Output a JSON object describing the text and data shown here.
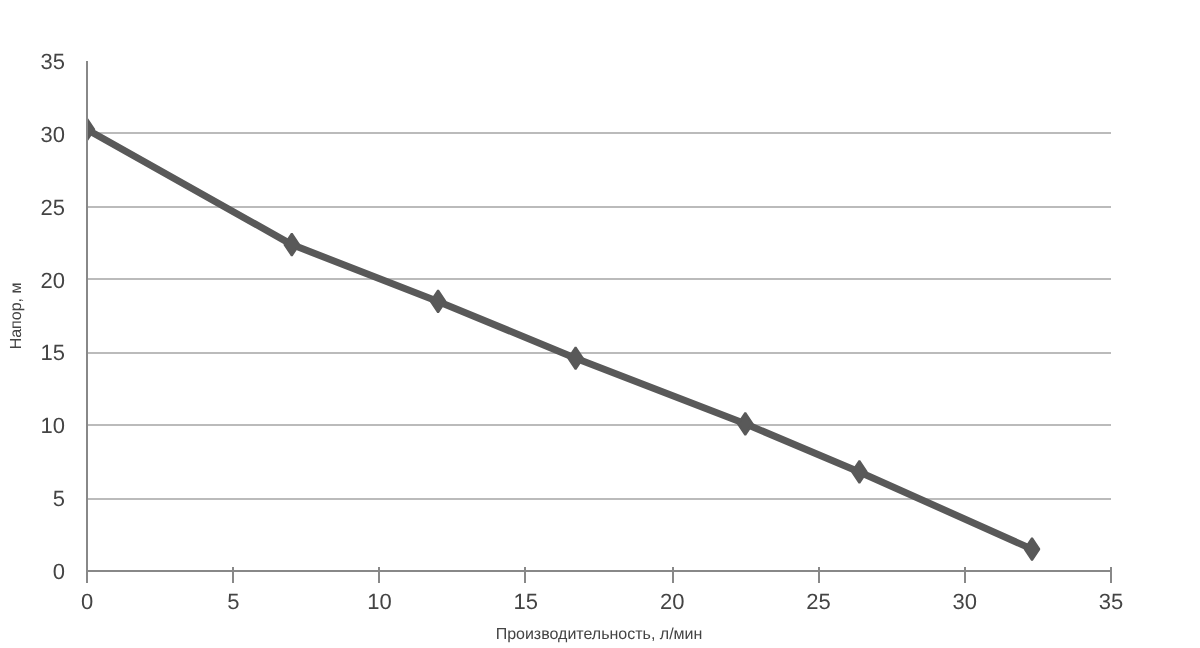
{
  "chart_data": {
    "type": "line",
    "xlabel": "Производительность, л/мин",
    "ylabel": "Напор, м",
    "x": [
      0,
      7,
      12,
      16.7,
      22.5,
      26.4,
      32.3
    ],
    "series": [
      {
        "color": "#595959",
        "values": [
          30.3,
          22.4,
          18.5,
          14.6,
          10.1,
          6.8,
          1.5
        ]
      }
    ],
    "xlim": [
      0,
      35
    ],
    "xticks": [
      0,
      5,
      10,
      15,
      20,
      25,
      30,
      35
    ],
    "ylim": [
      0,
      35
    ],
    "yticks": [
      0,
      5,
      10,
      15,
      20,
      25,
      30,
      35
    ],
    "grid": "y",
    "marker": "diamond",
    "line_style": "solid"
  }
}
